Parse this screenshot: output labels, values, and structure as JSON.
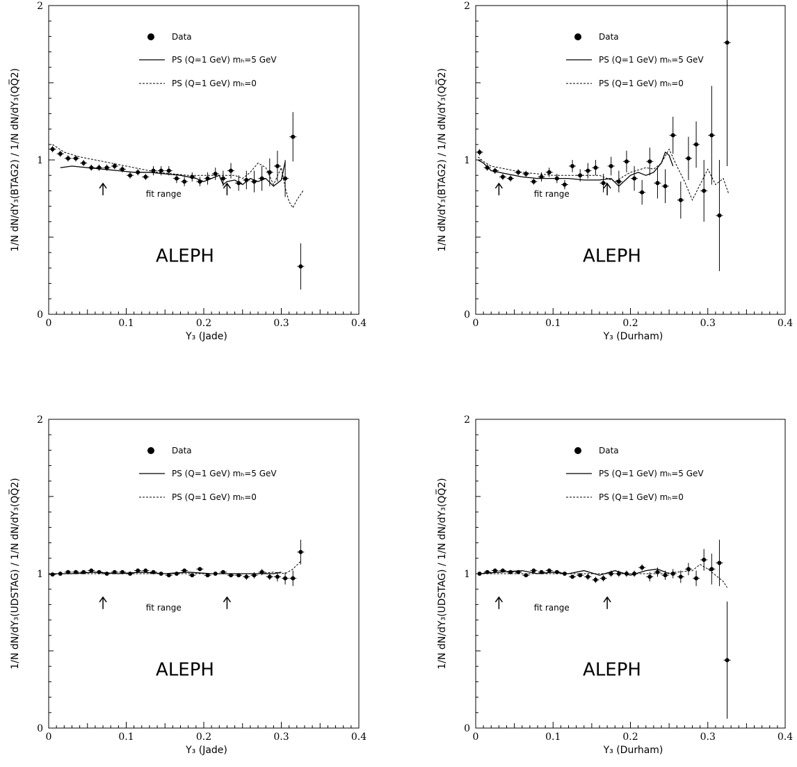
{
  "chart_data": [
    {
      "type": "scatter",
      "xlabel": "Y₃ (Jade)",
      "ylabel": "1/N dN/dY₃(BTAG2) / 1/N dN/dY₃(QQ̅2)",
      "xlim": [
        0,
        0.4
      ],
      "ylim": [
        0,
        2
      ],
      "x_ticks": [
        "0",
        "0.1",
        "0.2",
        "0.3",
        "0.4"
      ],
      "y_ticks": [
        "0",
        "1",
        "2"
      ],
      "experiment": "ALEPH",
      "fit_range_label": "fit range",
      "fit_range": [
        0.07,
        0.23
      ],
      "legend": [
        "Data",
        "PS (Q=1 GeV) mₕ=5 GeV",
        "PS (Q=1 GeV) mₕ=0"
      ],
      "series": [
        {
          "name": "Data",
          "style": "points",
          "x": [
            0.005,
            0.015,
            0.025,
            0.035,
            0.045,
            0.055,
            0.065,
            0.075,
            0.085,
            0.095,
            0.105,
            0.115,
            0.125,
            0.135,
            0.145,
            0.155,
            0.165,
            0.175,
            0.185,
            0.195,
            0.205,
            0.215,
            0.225,
            0.235,
            0.245,
            0.255,
            0.265,
            0.275,
            0.285,
            0.295,
            0.305,
            0.315,
            0.325
          ],
          "y": [
            1.07,
            1.04,
            1.01,
            1.01,
            0.98,
            0.95,
            0.95,
            0.95,
            0.96,
            0.94,
            0.9,
            0.92,
            0.89,
            0.93,
            0.93,
            0.93,
            0.88,
            0.86,
            0.89,
            0.86,
            0.88,
            0.91,
            0.88,
            0.93,
            0.85,
            0.87,
            0.86,
            0.88,
            0.92,
            0.96,
            0.88,
            1.15,
            0.31
          ],
          "yerr": [
            0.02,
            0.02,
            0.02,
            0.02,
            0.02,
            0.02,
            0.02,
            0.02,
            0.02,
            0.02,
            0.02,
            0.02,
            0.02,
            0.03,
            0.03,
            0.03,
            0.03,
            0.03,
            0.03,
            0.03,
            0.04,
            0.04,
            0.05,
            0.05,
            0.05,
            0.06,
            0.07,
            0.08,
            0.09,
            0.1,
            0.12,
            0.16,
            0.15
          ]
        },
        {
          "name": "PS (Q=1 GeV) mₕ=5 GeV",
          "style": "solid",
          "x": [
            0.015,
            0.03,
            0.05,
            0.07,
            0.09,
            0.11,
            0.13,
            0.15,
            0.17,
            0.19,
            0.2,
            0.21,
            0.22,
            0.225,
            0.23,
            0.24,
            0.25,
            0.26,
            0.27,
            0.28,
            0.29,
            0.3,
            0.305
          ],
          "y": [
            0.95,
            0.96,
            0.95,
            0.94,
            0.93,
            0.92,
            0.92,
            0.91,
            0.9,
            0.88,
            0.86,
            0.88,
            0.9,
            0.84,
            0.86,
            0.87,
            0.84,
            0.88,
            0.86,
            0.88,
            0.83,
            0.87,
            0.99
          ]
        },
        {
          "name": "PS (Q=1 GeV) mₕ=0",
          "style": "dashed",
          "x": [
            0.005,
            0.02,
            0.04,
            0.06,
            0.08,
            0.1,
            0.12,
            0.14,
            0.16,
            0.18,
            0.2,
            0.22,
            0.24,
            0.25,
            0.26,
            0.27,
            0.28,
            0.29,
            0.3,
            0.305,
            0.31,
            0.315,
            0.32,
            0.328
          ],
          "y": [
            1.1,
            1.05,
            1.02,
            1.0,
            0.98,
            0.96,
            0.94,
            0.92,
            0.91,
            0.9,
            0.9,
            0.9,
            0.9,
            0.88,
            0.92,
            0.98,
            0.95,
            0.84,
            0.95,
            0.82,
            0.73,
            0.69,
            0.74,
            0.8
          ]
        }
      ]
    },
    {
      "type": "scatter",
      "xlabel": "Y₃ (Durham)",
      "ylabel": "1/N dN/dY₃(BTAG2) / 1/N dN/dY₃(QQ̅2)",
      "xlim": [
        0,
        0.4
      ],
      "ylim": [
        0,
        2
      ],
      "x_ticks": [
        "0",
        "0.1",
        "0.2",
        "0.3",
        "0.4"
      ],
      "y_ticks": [
        "0",
        "1",
        "2"
      ],
      "experiment": "ALEPH",
      "fit_range_label": "fit range",
      "fit_range": [
        0.03,
        0.17
      ],
      "legend": [
        "Data",
        "PS (Q=1 GeV) mₕ=5 GeV",
        "PS (Q=1 GeV) mₕ=0"
      ],
      "series": [
        {
          "name": "Data",
          "style": "points",
          "x": [
            0.005,
            0.015,
            0.025,
            0.035,
            0.045,
            0.055,
            0.065,
            0.075,
            0.085,
            0.095,
            0.105,
            0.115,
            0.125,
            0.135,
            0.145,
            0.155,
            0.165,
            0.175,
            0.185,
            0.195,
            0.205,
            0.215,
            0.225,
            0.235,
            0.245,
            0.255,
            0.265,
            0.275,
            0.285,
            0.295,
            0.305,
            0.315,
            0.325
          ],
          "y": [
            1.05,
            0.95,
            0.93,
            0.89,
            0.88,
            0.92,
            0.91,
            0.86,
            0.89,
            0.92,
            0.88,
            0.84,
            0.96,
            0.9,
            0.93,
            0.95,
            0.85,
            0.96,
            0.86,
            0.99,
            0.88,
            0.79,
            0.99,
            0.85,
            0.83,
            1.16,
            0.74,
            1.01,
            1.1,
            0.8,
            1.16,
            0.64,
            1.76
          ],
          "yerr": [
            0.02,
            0.02,
            0.02,
            0.02,
            0.02,
            0.02,
            0.02,
            0.02,
            0.03,
            0.03,
            0.03,
            0.03,
            0.04,
            0.04,
            0.05,
            0.05,
            0.06,
            0.06,
            0.07,
            0.07,
            0.08,
            0.08,
            0.09,
            0.1,
            0.11,
            0.12,
            0.12,
            0.14,
            0.15,
            0.2,
            0.32,
            0.36,
            0.8
          ]
        },
        {
          "name": "PS (Q=1 GeV) mₕ=5 GeV",
          "style": "solid",
          "x": [
            0.003,
            0.01,
            0.02,
            0.04,
            0.06,
            0.08,
            0.1,
            0.12,
            0.14,
            0.16,
            0.175,
            0.185,
            0.2,
            0.21,
            0.22,
            0.23,
            0.24,
            0.245,
            0.25,
            0.255
          ],
          "y": [
            1.0,
            0.98,
            0.93,
            0.91,
            0.89,
            0.88,
            0.88,
            0.88,
            0.87,
            0.87,
            0.88,
            0.83,
            0.9,
            0.92,
            0.9,
            0.92,
            0.98,
            1.05,
            1.03,
            0.96
          ]
        },
        {
          "name": "PS (Q=1 GeV) mₕ=0",
          "style": "dashed",
          "x": [
            0.003,
            0.01,
            0.02,
            0.04,
            0.06,
            0.08,
            0.1,
            0.12,
            0.14,
            0.16,
            0.18,
            0.2,
            0.22,
            0.23,
            0.24,
            0.25,
            0.26,
            0.27,
            0.28,
            0.29,
            0.3,
            0.31,
            0.32,
            0.327
          ],
          "y": [
            1.02,
            0.99,
            0.96,
            0.94,
            0.92,
            0.91,
            0.9,
            0.9,
            0.9,
            0.9,
            0.86,
            0.92,
            0.95,
            0.94,
            0.98,
            1.07,
            0.96,
            0.86,
            0.74,
            0.84,
            0.94,
            0.84,
            0.88,
            0.78
          ]
        }
      ]
    },
    {
      "type": "scatter",
      "xlabel": "Y₃ (Jade)",
      "ylabel": "1/N dN/dY₃(UDSTAG) / 1/N dN/dY₃(QQ̅2)",
      "xlim": [
        0,
        0.4
      ],
      "ylim": [
        0,
        2
      ],
      "x_ticks": [
        "0",
        "0.1",
        "0.2",
        "0.3",
        "0.4"
      ],
      "y_ticks": [
        "0",
        "1",
        "2"
      ],
      "experiment": "ALEPH",
      "fit_range_label": "fit range",
      "fit_range": [
        0.07,
        0.23
      ],
      "legend": [
        "Data",
        "PS (Q=1 GeV) mₕ=5 GeV",
        "PS (Q=1 GeV) mₕ=0"
      ],
      "series": [
        {
          "name": "Data",
          "style": "points",
          "x": [
            0.005,
            0.015,
            0.025,
            0.035,
            0.045,
            0.055,
            0.065,
            0.075,
            0.085,
            0.095,
            0.105,
            0.115,
            0.125,
            0.135,
            0.145,
            0.155,
            0.165,
            0.175,
            0.185,
            0.195,
            0.205,
            0.215,
            0.225,
            0.235,
            0.245,
            0.255,
            0.265,
            0.275,
            0.285,
            0.295,
            0.305,
            0.315,
            0.325
          ],
          "y": [
            0.995,
            1.0,
            1.01,
            1.01,
            1.01,
            1.02,
            1.01,
            1.0,
            1.01,
            1.01,
            1.0,
            1.02,
            1.02,
            1.01,
            1.0,
            0.99,
            1.0,
            1.02,
            0.99,
            1.03,
            0.99,
            1.0,
            1.01,
            0.99,
            0.99,
            0.98,
            0.99,
            1.01,
            0.98,
            0.98,
            0.97,
            0.97,
            1.14
          ],
          "yerr": [
            0.01,
            0.01,
            0.01,
            0.01,
            0.01,
            0.01,
            0.01,
            0.01,
            0.01,
            0.01,
            0.01,
            0.01,
            0.01,
            0.01,
            0.01,
            0.01,
            0.01,
            0.01,
            0.01,
            0.01,
            0.01,
            0.01,
            0.01,
            0.01,
            0.01,
            0.02,
            0.02,
            0.02,
            0.02,
            0.03,
            0.04,
            0.05,
            0.08
          ]
        },
        {
          "name": "PS (Q=1 GeV) mₕ=5 GeV",
          "style": "solid",
          "x": [
            0.005,
            0.03,
            0.06,
            0.09,
            0.12,
            0.15,
            0.18,
            0.21,
            0.24,
            0.27,
            0.29,
            0.3
          ],
          "y": [
            1.0,
            1.0,
            1.01,
            1.0,
            1.01,
            1.0,
            1.01,
            1.0,
            1.0,
            1.0,
            1.0,
            1.01
          ]
        },
        {
          "name": "PS (Q=1 GeV) mₕ=0",
          "style": "dashed",
          "x": [
            0.005,
            0.03,
            0.06,
            0.09,
            0.12,
            0.15,
            0.18,
            0.21,
            0.24,
            0.27,
            0.29,
            0.305,
            0.315,
            0.325
          ],
          "y": [
            1.0,
            1.0,
            1.0,
            1.0,
            1.0,
            1.0,
            1.0,
            1.0,
            1.0,
            1.0,
            1.01,
            1.0,
            1.03,
            1.08
          ]
        }
      ]
    },
    {
      "type": "scatter",
      "xlabel": "Y₃ (Durham)",
      "ylabel": "1/N dN/dY₃(UDSTAG) / 1/N dN/dY₃(QQ̅2)",
      "xlim": [
        0,
        0.4
      ],
      "ylim": [
        0,
        2
      ],
      "x_ticks": [
        "0",
        "0.1",
        "0.2",
        "0.3",
        "0.4"
      ],
      "y_ticks": [
        "0",
        "1",
        "2"
      ],
      "experiment": "ALEPH",
      "fit_range_label": "fit range",
      "fit_range": [
        0.03,
        0.17
      ],
      "legend": [
        "Data",
        "PS (Q=1 GeV) mₕ=5 GeV",
        "PS (Q=1 GeV) mₕ=0"
      ],
      "series": [
        {
          "name": "Data",
          "style": "points",
          "x": [
            0.005,
            0.015,
            0.025,
            0.035,
            0.045,
            0.055,
            0.065,
            0.075,
            0.085,
            0.095,
            0.105,
            0.115,
            0.125,
            0.135,
            0.145,
            0.155,
            0.165,
            0.175,
            0.185,
            0.195,
            0.205,
            0.215,
            0.225,
            0.235,
            0.245,
            0.255,
            0.265,
            0.275,
            0.285,
            0.295,
            0.305,
            0.315,
            0.325
          ],
          "y": [
            1.0,
            1.01,
            1.02,
            1.02,
            1.01,
            1.01,
            0.99,
            1.02,
            1.01,
            1.02,
            1.01,
            1.0,
            0.98,
            0.99,
            0.98,
            0.96,
            0.97,
            1.0,
            1.0,
            1.0,
            1.0,
            1.04,
            0.98,
            1.01,
            0.99,
            1.0,
            0.98,
            1.03,
            0.97,
            1.09,
            1.03,
            1.07,
            0.44
          ],
          "yerr": [
            0.01,
            0.01,
            0.01,
            0.01,
            0.01,
            0.01,
            0.01,
            0.01,
            0.01,
            0.01,
            0.01,
            0.01,
            0.01,
            0.01,
            0.02,
            0.02,
            0.02,
            0.02,
            0.02,
            0.02,
            0.02,
            0.02,
            0.03,
            0.03,
            0.03,
            0.03,
            0.04,
            0.04,
            0.05,
            0.07,
            0.1,
            0.15,
            0.38
          ]
        },
        {
          "name": "PS (Q=1 GeV) mₕ=5 GeV",
          "style": "solid",
          "x": [
            0.005,
            0.03,
            0.06,
            0.08,
            0.1,
            0.12,
            0.14,
            0.16,
            0.18,
            0.2,
            0.22,
            0.235,
            0.25
          ],
          "y": [
            1.0,
            1.01,
            1.02,
            1.0,
            1.01,
            1.0,
            1.02,
            0.99,
            1.02,
            0.99,
            1.02,
            1.03,
            1.0
          ]
        },
        {
          "name": "PS (Q=1 GeV) mₕ=0",
          "style": "dashed",
          "x": [
            0.005,
            0.03,
            0.06,
            0.09,
            0.12,
            0.15,
            0.18,
            0.2,
            0.22,
            0.24,
            0.26,
            0.28,
            0.29,
            0.3,
            0.31,
            0.32,
            0.325
          ],
          "y": [
            1.0,
            1.0,
            1.0,
            1.0,
            1.0,
            1.0,
            1.0,
            1.0,
            1.0,
            1.0,
            1.01,
            1.02,
            1.06,
            1.03,
            0.99,
            0.95,
            0.91
          ]
        }
      ]
    }
  ]
}
